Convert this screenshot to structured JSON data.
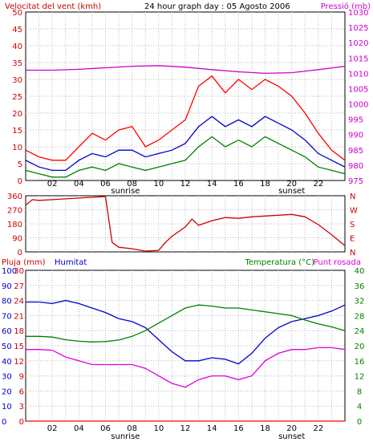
{
  "chart_data": [
    {
      "type": "line",
      "panel": "wind-pressure",
      "title": "24 hour graph day : 05 Agosto 2006",
      "left_label": "Velocitat del vent (kmh)",
      "right_label": "Pressió (mb)",
      "x_ticks": [
        "02",
        "04",
        "06",
        "08",
        "10",
        "12",
        "14",
        "16",
        "18",
        "20",
        "22"
      ],
      "x_range_hours": [
        0,
        24
      ],
      "y_left_range": [
        0,
        50
      ],
      "y_left_ticks": [
        "0",
        "5",
        "10",
        "15",
        "20",
        "25",
        "30",
        "35",
        "40",
        "45",
        "50"
      ],
      "y_right_range": [
        975,
        1030
      ],
      "y_right_ticks": [
        "975",
        "980",
        "985",
        "990",
        "995",
        "1000",
        "1005",
        "1010",
        "1015",
        "1020",
        "1025",
        "1030"
      ],
      "annotations": [
        {
          "text": "sunrise",
          "hour": 7.5
        },
        {
          "text": "sunset",
          "hour": 20.0
        }
      ],
      "grid": true,
      "series": [
        {
          "name": "Velocitat del vent (kmh)",
          "axis": "left",
          "color": "#ff0000",
          "x": [
            0,
            1,
            2,
            3,
            4,
            5,
            6,
            7,
            8,
            9,
            10,
            11,
            12,
            13,
            14,
            15,
            16,
            17,
            18,
            19,
            20,
            21,
            22,
            23,
            24
          ],
          "values": [
            9,
            7,
            6,
            6,
            10,
            14,
            12,
            15,
            16,
            10,
            12,
            15,
            18,
            28,
            31,
            26,
            30,
            27,
            30,
            28,
            25,
            20,
            14,
            9,
            6
          ]
        },
        {
          "axis": "left",
          "color": "#0000cc",
          "x": [
            0,
            1,
            2,
            3,
            4,
            5,
            6,
            7,
            8,
            9,
            10,
            11,
            12,
            13,
            14,
            15,
            16,
            17,
            18,
            19,
            20,
            21,
            22,
            23,
            24
          ],
          "values": [
            6,
            4,
            3,
            3,
            6,
            8,
            7,
            9,
            9,
            7,
            8,
            9,
            11,
            16,
            19,
            16,
            18,
            16,
            19,
            17,
            15,
            12,
            8,
            6,
            4
          ]
        },
        {
          "axis": "left",
          "color": "#008000",
          "x": [
            0,
            1,
            2,
            3,
            4,
            5,
            6,
            7,
            8,
            9,
            10,
            11,
            12,
            13,
            14,
            15,
            16,
            17,
            18,
            19,
            20,
            21,
            22,
            23,
            24
          ],
          "values": [
            3,
            2,
            1,
            1,
            3,
            4,
            3,
            5,
            4,
            3,
            4,
            5,
            6,
            10,
            13,
            10,
            12,
            10,
            13,
            11,
            9,
            7,
            4,
            3,
            2
          ]
        },
        {
          "name": "Pressió (mb)",
          "axis": "right",
          "color": "#cc00cc",
          "x": [
            0,
            2,
            4,
            6,
            8,
            10,
            12,
            14,
            16,
            18,
            20,
            22,
            24
          ],
          "values": [
            1011,
            1011,
            1011.3,
            1011.8,
            1012.3,
            1012.5,
            1012,
            1011.2,
            1010.5,
            1010,
            1010.2,
            1011.2,
            1012.3
          ]
        }
      ]
    },
    {
      "type": "line",
      "panel": "wind-direction",
      "x_range_hours": [
        0,
        24
      ],
      "y_range": [
        0,
        360
      ],
      "y_ticks": [
        "0",
        "90",
        "180",
        "270",
        "360"
      ],
      "y_right_ticks": [
        "N",
        "W",
        "S",
        "E",
        "N"
      ],
      "grid": true,
      "series": [
        {
          "color": "#cc0000",
          "x": [
            0,
            0.5,
            1,
            2,
            3,
            4,
            5,
            6,
            6.5,
            7,
            8,
            9,
            10,
            10.5,
            11,
            12,
            12.5,
            13,
            14,
            15,
            16,
            17,
            18,
            19,
            20,
            21,
            22,
            23,
            24
          ],
          "values": [
            300,
            335,
            330,
            335,
            340,
            345,
            350,
            355,
            60,
            30,
            20,
            5,
            10,
            60,
            100,
            160,
            210,
            170,
            200,
            220,
            215,
            225,
            230,
            235,
            240,
            225,
            175,
            110,
            40
          ]
        }
      ]
    },
    {
      "type": "line",
      "panel": "humidity-temperature",
      "left_label": "Pluja (mm)",
      "humidity_label": "Humitat",
      "right_label": "Temperatura (°C)",
      "right_label_2": "Punt rosada",
      "x_range_hours": [
        0,
        24
      ],
      "y_left_range": [
        0,
        30
      ],
      "y_rain_ticks": [
        "0",
        "3",
        "6",
        "9",
        "12",
        "15",
        "18",
        "21",
        "24",
        "27",
        "30"
      ],
      "y_humidity_ticks": [
        "0",
        "10",
        "20",
        "30",
        "40",
        "50",
        "60",
        "70",
        "80",
        "90",
        "100"
      ],
      "y_right_range": [
        0,
        40
      ],
      "y_right_ticks": [
        "0",
        "4",
        "8",
        "12",
        "16",
        "20",
        "24",
        "28",
        "32",
        "36",
        "40"
      ],
      "annotations": [
        {
          "text": "sunrise",
          "hour": 7.5
        },
        {
          "text": "sunset",
          "hour": 20.0
        }
      ],
      "grid": true,
      "series": [
        {
          "name": "Humitat",
          "axis": "humidity",
          "color": "#0000cc",
          "x": [
            0,
            1,
            2,
            3,
            4,
            5,
            6,
            7,
            8,
            9,
            10,
            11,
            12,
            13,
            14,
            15,
            16,
            17,
            18,
            19,
            20,
            21,
            22,
            23,
            24
          ],
          "values": [
            79,
            79,
            78,
            80,
            78,
            75,
            72,
            68,
            66,
            62,
            54,
            46,
            40,
            40,
            42,
            41,
            38,
            45,
            55,
            62,
            66,
            68,
            70,
            73,
            77
          ]
        },
        {
          "name": "Temperatura (°C)",
          "axis": "right",
          "color": "#008000",
          "x": [
            0,
            1,
            2,
            3,
            4,
            5,
            6,
            7,
            8,
            9,
            10,
            11,
            12,
            13,
            14,
            15,
            16,
            17,
            18,
            19,
            20,
            21,
            22,
            23,
            24
          ],
          "values": [
            22.5,
            22.5,
            22.3,
            21.6,
            21.2,
            21,
            21.1,
            21.5,
            22.5,
            24,
            26,
            28,
            30,
            30.8,
            30.5,
            30,
            30,
            29.5,
            29,
            28.5,
            28,
            26.8,
            25.8,
            25,
            24
          ]
        },
        {
          "name": "Punt rosada",
          "axis": "right",
          "color": "#dd00dd",
          "x": [
            0,
            1,
            2,
            3,
            4,
            5,
            6,
            7,
            8,
            9,
            10,
            11,
            12,
            13,
            14,
            15,
            16,
            17,
            18,
            19,
            20,
            21,
            22,
            23,
            24
          ],
          "values": [
            19,
            19,
            18.8,
            17,
            16,
            15,
            15,
            15,
            15,
            14,
            12,
            10,
            9,
            11,
            12,
            12,
            11,
            12,
            16,
            18,
            19,
            19,
            19.5,
            19.5,
            19
          ]
        },
        {
          "axis": "left",
          "color": "#ff0000",
          "x": [
            0,
            24
          ],
          "values": [
            0,
            0
          ]
        }
      ]
    }
  ],
  "ui": {
    "title": "24 hour graph day : 05 Agosto 2006",
    "wind_label": "Velocitat del vent (kmh)",
    "pressure_label": "Pressió (mb)",
    "rain_label": "Pluja (mm)",
    "humidity_label": "Humitat",
    "temperature_label": "Temperatura (°C)",
    "dewpoint_label": "Punt rosada",
    "sunrise": "sunrise",
    "sunset": "sunset"
  },
  "colors": {
    "frame": "#000000",
    "grid": "#bbbbbb",
    "red_text": "#cc0000",
    "pressure_text": "#cc00cc",
    "blue_text": "#0000cc",
    "green_text": "#008000",
    "dewpoint_text": "#dd00dd"
  }
}
